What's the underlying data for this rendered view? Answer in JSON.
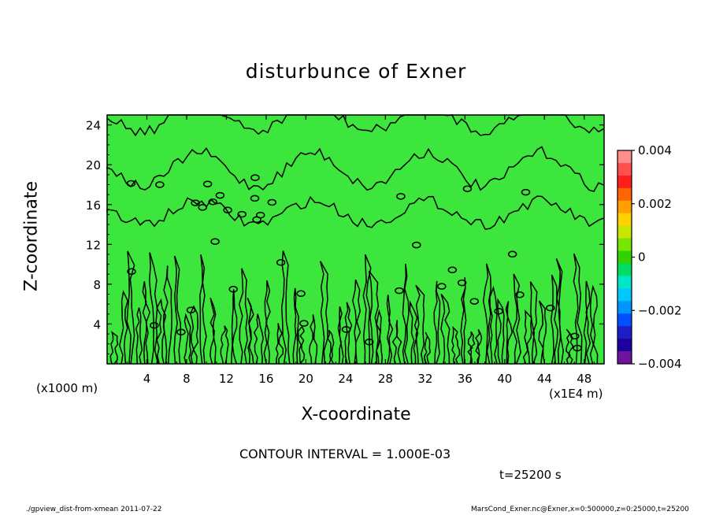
{
  "chart_data": {
    "type": "contour",
    "title": "disturbunce of Exner",
    "xlabel": "X-coordinate",
    "ylabel": "Z-coordinate",
    "x_unit": "(x1000 m)",
    "x_extra_unit": "(x1E4 m)",
    "xlim": [
      0,
      50
    ],
    "ylim": [
      0,
      25
    ],
    "x_ticks": [
      4,
      8,
      12,
      16,
      20,
      24,
      28,
      32,
      36,
      40,
      44,
      48
    ],
    "y_ticks": [
      4,
      8,
      12,
      16,
      20,
      24
    ],
    "contour_interval_label": "CONTOUR INTERVAL = 1.000E-03",
    "colorbar": {
      "min": -0.004,
      "max": 0.004,
      "tick_labels": [
        "0.004",
        "0.002",
        "0",
        "−0.002",
        "−0.004"
      ],
      "tick_values": [
        0.004,
        0.002,
        0,
        -0.002,
        -0.004
      ],
      "colors": [
        "#FF8C8C",
        "#FF5050",
        "#FF1E1E",
        "#FF6400",
        "#FFA000",
        "#FFD200",
        "#C8E600",
        "#78E600",
        "#32D200",
        "#00DC64",
        "#00E6C8",
        "#00C8FF",
        "#0096FF",
        "#0050FF",
        "#1E1EC8",
        "#1E00A0",
        "#6E14A0"
      ]
    },
    "field_color_dominant": "#3CE63C"
  },
  "labels": {
    "time": "t=25200 s",
    "footer_left": "./gpview_dist-from-xmean  2011-07-22",
    "footer_right": "MarsCond_Exner.nc@Exner,x=0:500000,z=0:25000,t=25200"
  }
}
